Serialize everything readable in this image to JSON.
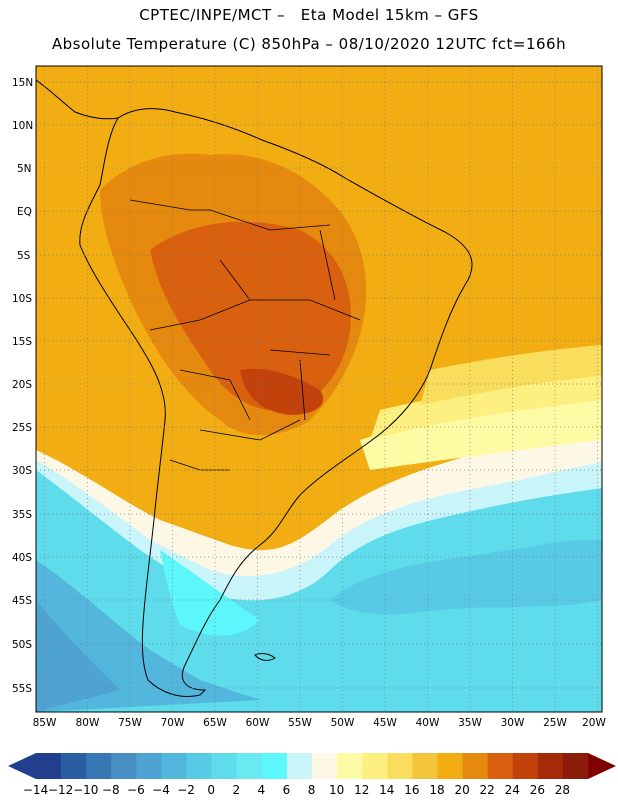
{
  "header": {
    "title_line1": "CPTEC/INPE/MCT –   Eta Model 15km – GFS",
    "title_line2": "Absolute Temperature (C) 850hPa – 08/10/2020 12UTC fct=166h"
  },
  "map": {
    "lat_labels": [
      "15N",
      "10N",
      "5N",
      "EQ",
      "5S",
      "10S",
      "15S",
      "20S",
      "25S",
      "30S",
      "35S",
      "40S",
      "45S",
      "50S",
      "55S"
    ],
    "lon_labels": [
      "85W",
      "80W",
      "75W",
      "70W",
      "65W",
      "60W",
      "55W",
      "50W",
      "45W",
      "40W",
      "35W",
      "30W",
      "25W",
      "20W"
    ]
  },
  "colorbar": {
    "labels": [
      "-14",
      "-12",
      "-10",
      "-8",
      "-6",
      "-4",
      "-2",
      "0",
      "2",
      "4",
      "6",
      "8",
      "10",
      "12",
      "14",
      "16",
      "18",
      "20",
      "22",
      "24",
      "26",
      "28"
    ],
    "colors": [
      "#213f8c",
      "#2a5ea3",
      "#3777b3",
      "#4a8fc3",
      "#4fa3d2",
      "#52b6dd",
      "#57cbe5",
      "#5fdcec",
      "#6be9f0",
      "#5cf7fb",
      "#c8f4fa",
      "#fdf7e5",
      "#fdfca5",
      "#fdef80",
      "#f8de5c",
      "#f4c43a",
      "#f1ad12",
      "#e5890f",
      "#d9600e",
      "#c3410b",
      "#a52a08",
      "#8a1c09"
    ],
    "low_color": "#213f8c",
    "high_color": "#800000"
  }
}
